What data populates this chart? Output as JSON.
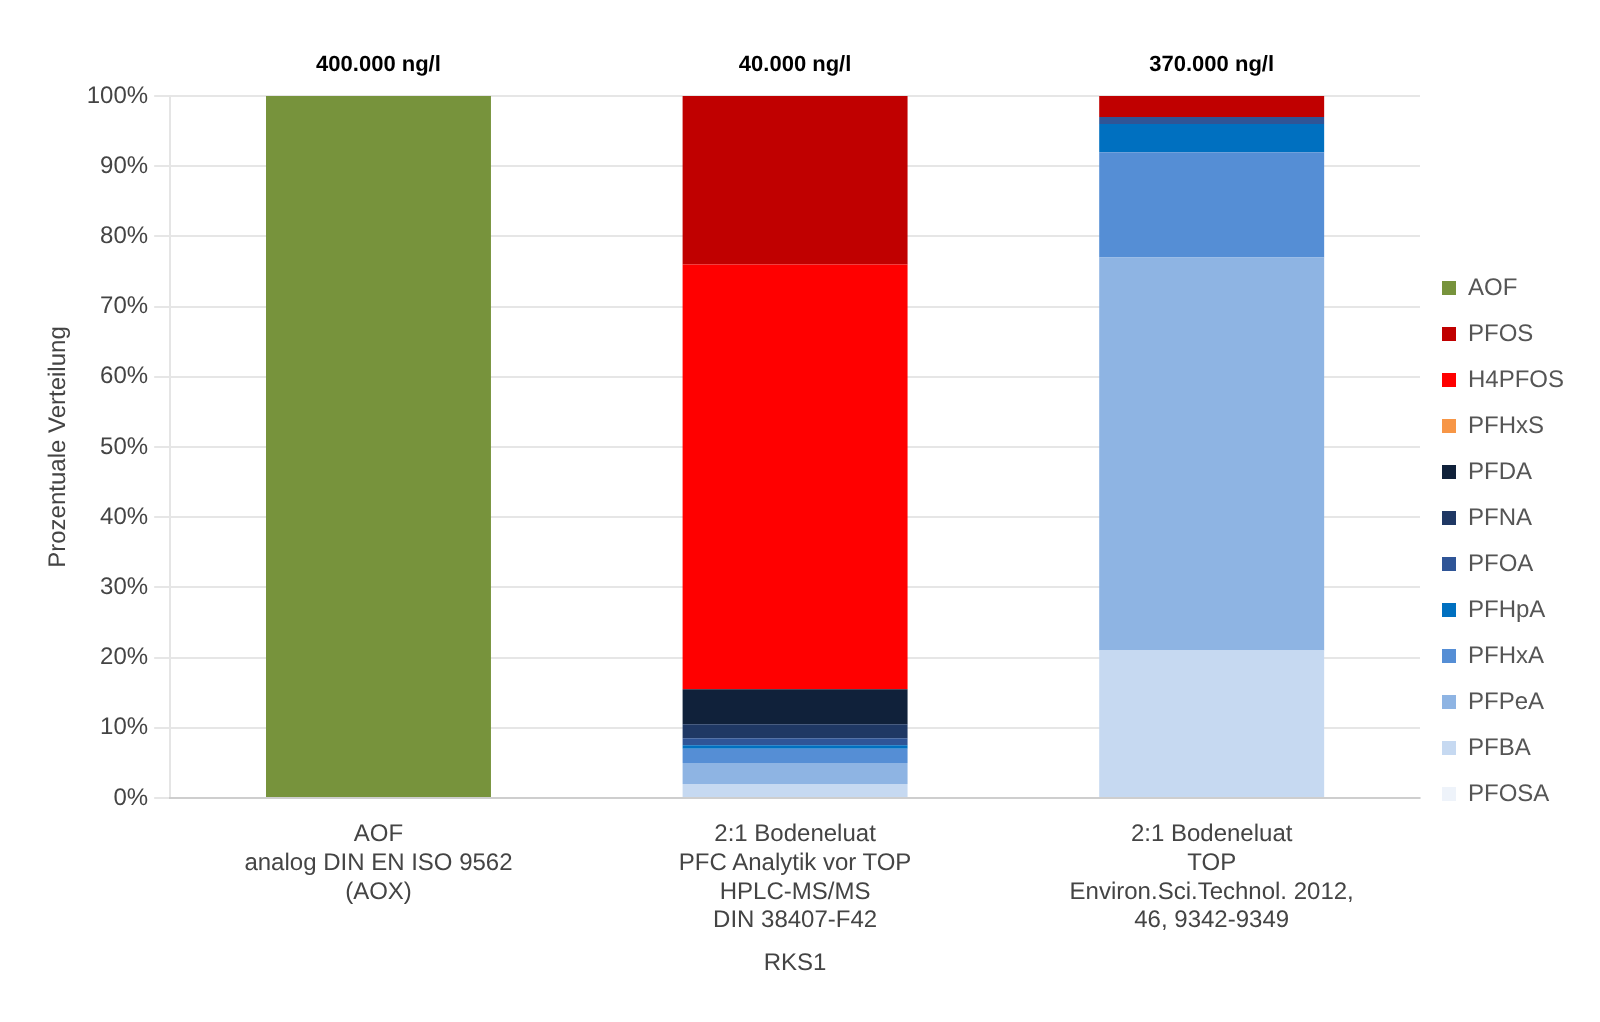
{
  "chart_data": {
    "type": "bar",
    "stacked": true,
    "categories": [
      "AOF\nanalog DIN EN ISO 9562\n(AOX)",
      "2:1 Bodeneluat\nPFC Analytik vor TOP\nHPLC-MS/MS\nDIN 38407-F42",
      "2:1 Bodeneluat\nTOP\nEnviron.Sci.Technol. 2012,\n46, 9342-9349"
    ],
    "xlabel": "RKS1",
    "ylabel": "Prozentuale Verteilung",
    "annotations": [
      "400.000 ng/l",
      "40.000 ng/l",
      "370.000 ng/l"
    ],
    "ylim": [
      0,
      100
    ],
    "yticks": [
      {
        "value": 0,
        "label": "0%"
      },
      {
        "value": 10,
        "label": "10%"
      },
      {
        "value": 20,
        "label": "20%"
      },
      {
        "value": 30,
        "label": "30%"
      },
      {
        "value": 40,
        "label": "40%"
      },
      {
        "value": 50,
        "label": "50%"
      },
      {
        "value": 60,
        "label": "60%"
      },
      {
        "value": 70,
        "label": "70%"
      },
      {
        "value": 80,
        "label": "80%"
      },
      {
        "value": 90,
        "label": "90%"
      },
      {
        "value": 100,
        "label": "100%"
      }
    ],
    "grid": "y",
    "legend": "right",
    "series": [
      {
        "name": "PFOSA",
        "color": "#eef3fa",
        "values": [
          null,
          null,
          null
        ]
      },
      {
        "name": "PFBA",
        "color": "#c6d9f1",
        "values": [
          null,
          2,
          21
        ]
      },
      {
        "name": "PFPeA",
        "color": "#8eb4e3",
        "values": [
          null,
          3,
          56
        ]
      },
      {
        "name": "PFHxA",
        "color": "#558ed5",
        "values": [
          null,
          2,
          15
        ]
      },
      {
        "name": "PFHpA",
        "color": "#0070c0",
        "values": [
          null,
          0.5,
          4
        ]
      },
      {
        "name": "PFOA",
        "color": "#2f5597",
        "values": [
          null,
          1,
          1
        ]
      },
      {
        "name": "PFNA",
        "color": "#1f3864",
        "values": [
          null,
          2,
          null
        ]
      },
      {
        "name": "PFDA",
        "color": "#10213a",
        "values": [
          null,
          5,
          null
        ]
      },
      {
        "name": "PFHxS",
        "color": "#f79646",
        "values": [
          null,
          null,
          null
        ]
      },
      {
        "name": "H4PFOS",
        "color": "#ff0000",
        "values": [
          null,
          60.5,
          null
        ]
      },
      {
        "name": "PFOS",
        "color": "#c00000",
        "values": [
          null,
          24,
          3
        ]
      },
      {
        "name": "AOF",
        "color": "#77933c",
        "values": [
          100,
          null,
          null
        ]
      }
    ]
  }
}
